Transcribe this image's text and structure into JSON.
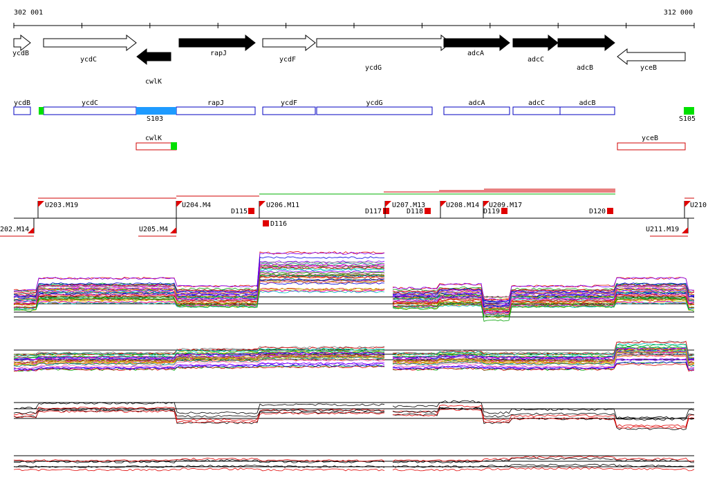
{
  "ruler": {
    "start": "302 001",
    "end": "312 000"
  },
  "genes": [
    {
      "name": "ycdB"
    },
    {
      "name": "ycdC"
    },
    {
      "name": "cwlK"
    },
    {
      "name": "rapJ"
    },
    {
      "name": "ycdF"
    },
    {
      "name": "ycdG"
    },
    {
      "name": "adcA"
    },
    {
      "name": "adcC"
    },
    {
      "name": "adcB"
    },
    {
      "name": "yceB"
    }
  ],
  "features": [
    {
      "name": "ycdB"
    },
    {
      "name": "ycdC"
    },
    {
      "name": "rapJ"
    },
    {
      "name": "ycdF"
    },
    {
      "name": "ycdG"
    },
    {
      "name": "adcA"
    },
    {
      "name": "adcC"
    },
    {
      "name": "adcB"
    }
  ],
  "sites": [
    {
      "name": "S103"
    },
    {
      "name": "S105"
    }
  ],
  "antisense": [
    {
      "name": "cwlK"
    },
    {
      "name": "yceB"
    }
  ],
  "segments": [
    {
      "name": "U203.M19"
    },
    {
      "name": "U204.M4"
    },
    {
      "name": "D115"
    },
    {
      "name": "U206.M11"
    },
    {
      "name": "D117"
    },
    {
      "name": "U207.M13"
    },
    {
      "name": "D118"
    },
    {
      "name": "U208.M14"
    },
    {
      "name": "U209.M17"
    },
    {
      "name": "D119"
    },
    {
      "name": "D120"
    },
    {
      "name": "U210"
    },
    {
      "name": "202.M14"
    },
    {
      "name": "U205.M4"
    },
    {
      "name": "D116"
    },
    {
      "name": "U211.M19"
    }
  ]
}
